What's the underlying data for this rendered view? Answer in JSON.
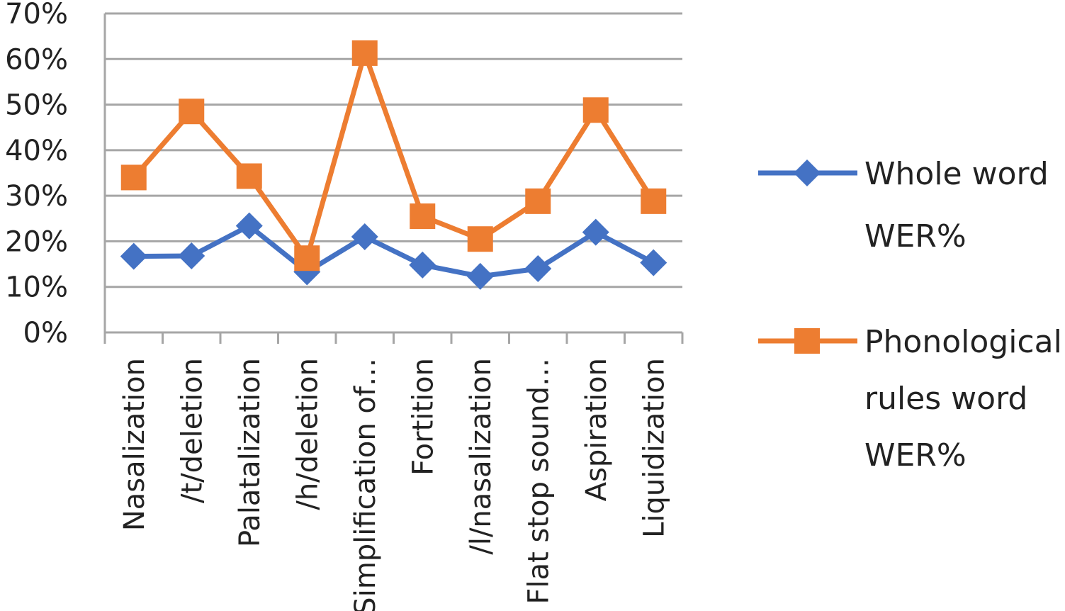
{
  "chart_data": {
    "type": "line",
    "categories": [
      "Nasalization",
      "/t/deletion",
      "Palatalization",
      "/h/deletion",
      "Simplification of…",
      "Fortition",
      "/l/nasalization",
      "Flat stop sound…",
      "Aspiration",
      "Liquidization"
    ],
    "series": [
      {
        "name": "Whole word WER%",
        "name_lines": [
          "Whole word",
          "WER%"
        ],
        "color": "#4472C4",
        "marker": "diamond",
        "values": [
          16.7,
          16.8,
          23.4,
          13.3,
          21.0,
          14.8,
          12.3,
          14.0,
          22.0,
          15.3
        ]
      },
      {
        "name": "Phonological rules word WER%",
        "name_lines": [
          "Phonological",
          "rules word",
          "WER%"
        ],
        "color": "#ED7D31",
        "marker": "square",
        "values": [
          34.0,
          48.5,
          34.3,
          16.3,
          61.3,
          25.5,
          20.5,
          28.8,
          48.8,
          28.8
        ]
      }
    ],
    "yticks": [
      "0%",
      "10%",
      "20%",
      "30%",
      "40%",
      "50%",
      "60%",
      "70%"
    ],
    "ylim": [
      0,
      70
    ],
    "ystep": 10,
    "grid": true,
    "gridColor": "#A6A6A6",
    "legend": "right"
  }
}
